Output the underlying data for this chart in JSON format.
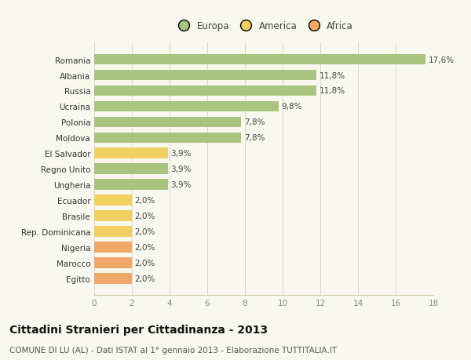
{
  "categories": [
    "Romania",
    "Albania",
    "Russia",
    "Ucraina",
    "Polonia",
    "Moldova",
    "El Salvador",
    "Regno Unito",
    "Ungheria",
    "Ecuador",
    "Brasile",
    "Rep. Dominicana",
    "Nigeria",
    "Marocco",
    "Egitto"
  ],
  "values": [
    17.6,
    11.8,
    11.8,
    9.8,
    7.8,
    7.8,
    3.9,
    3.9,
    3.9,
    2.0,
    2.0,
    2.0,
    2.0,
    2.0,
    2.0
  ],
  "labels": [
    "17,6%",
    "11,8%",
    "11,8%",
    "9,8%",
    "7,8%",
    "7,8%",
    "3,9%",
    "3,9%",
    "3,9%",
    "2,0%",
    "2,0%",
    "2,0%",
    "2,0%",
    "2,0%",
    "2,0%"
  ],
  "continent": [
    "Europa",
    "Europa",
    "Europa",
    "Europa",
    "Europa",
    "Europa",
    "America",
    "Europa",
    "Europa",
    "America",
    "America",
    "America",
    "Africa",
    "Africa",
    "Africa"
  ],
  "colors": {
    "Europa": "#a8c47e",
    "America": "#f0d060",
    "Africa": "#f0a868"
  },
  "legend_labels": [
    "Europa",
    "America",
    "Africa"
  ],
  "legend_colors": [
    "#a8c47e",
    "#f0d060",
    "#f0a868"
  ],
  "title": "Cittadini Stranieri per Cittadinanza - 2013",
  "subtitle": "COMUNE DI LU (AL) - Dati ISTAT al 1° gennaio 2013 - Elaborazione TUTTITALIA.IT",
  "xlim": [
    0,
    18
  ],
  "xticks": [
    0,
    2,
    4,
    6,
    8,
    10,
    12,
    14,
    16,
    18
  ],
  "background_color": "#f8f8ee",
  "bar_height": 0.68,
  "title_fontsize": 10,
  "subtitle_fontsize": 7.5,
  "label_fontsize": 7.5,
  "tick_fontsize": 7.5,
  "legend_fontsize": 8.5
}
